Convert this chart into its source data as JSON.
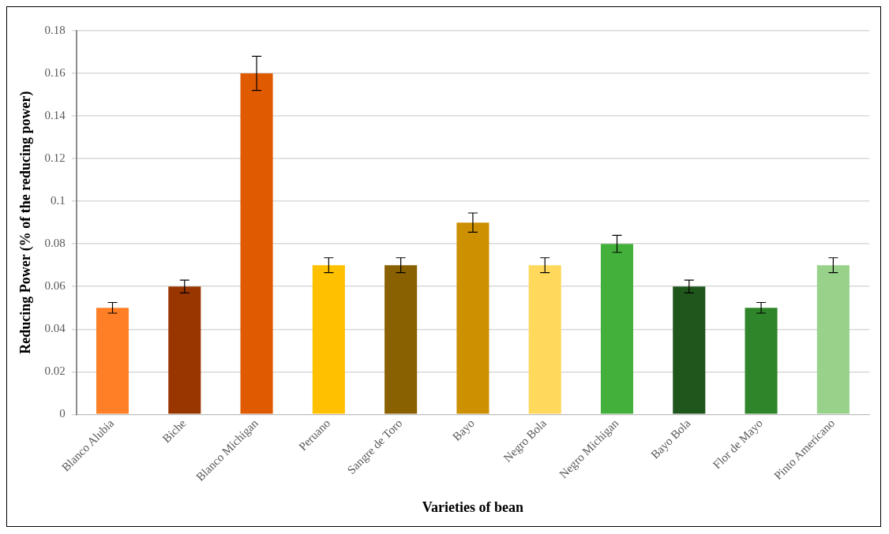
{
  "chart_data": {
    "type": "bar",
    "xlabel": "Varieties of bean",
    "ylabel": "Reducing Power (% of the reducing power)",
    "categories": [
      "Blanco Alubia",
      "Biche",
      "Blanco Michigan",
      "Peruano",
      "Sangre de Toro",
      "Bayo",
      "Negro Bola",
      "Negro Michigan",
      "Bayo Bola",
      "Flor de Mayo",
      "Pinto Americano"
    ],
    "values": [
      0.05,
      0.06,
      0.16,
      0.07,
      0.07,
      0.09,
      0.07,
      0.08,
      0.06,
      0.05,
      0.07
    ],
    "colors": [
      "#ff7f27",
      "#993600",
      "#e05a00",
      "#ffc000",
      "#8a6100",
      "#cc9000",
      "#ffd85c",
      "#44b03c",
      "#1e561c",
      "#2f862a",
      "#98d28a"
    ],
    "errors": [
      0.0025,
      0.003,
      0.008,
      0.0035,
      0.0035,
      0.0045,
      0.0035,
      0.004,
      0.003,
      0.0025,
      0.0035
    ],
    "ylim": [
      0,
      0.18
    ],
    "yticks": [
      0,
      0.02,
      0.04,
      0.06,
      0.08,
      0.1,
      0.12,
      0.14,
      0.16,
      0.18
    ],
    "grid": "y",
    "legend": false
  }
}
